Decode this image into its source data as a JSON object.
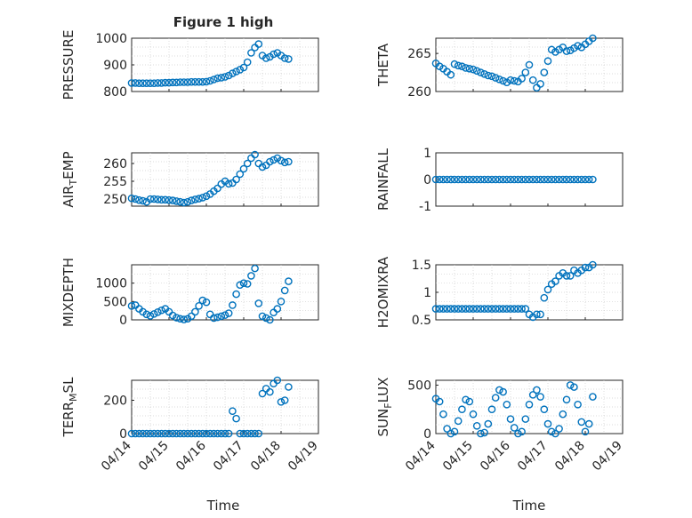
{
  "figure": {
    "title": "Figure 1 high",
    "marker_color": "#0072BD",
    "x_axis_label": "Time",
    "x_ticks": [
      "04/14",
      "04/15",
      "04/16",
      "04/17",
      "04/18",
      "04/19"
    ]
  },
  "chart_data": [
    {
      "type": "scatter",
      "ylabel": "PRESSURE",
      "ylim": [
        800,
        1000
      ],
      "yticks": [
        "800",
        "900",
        "1000"
      ],
      "grid": true,
      "xticks_shown": false,
      "x_day": [
        0.0,
        0.1,
        0.2,
        0.3,
        0.4,
        0.5,
        0.6,
        0.7,
        0.8,
        0.9,
        1.0,
        1.1,
        1.2,
        1.3,
        1.4,
        1.5,
        1.6,
        1.7,
        1.8,
        1.9,
        2.0,
        2.1,
        2.2,
        2.3,
        2.4,
        2.5,
        2.6,
        2.7,
        2.8,
        2.9,
        3.0,
        3.1,
        3.2,
        3.3,
        3.4,
        3.5,
        3.6,
        3.7,
        3.8,
        3.9,
        4.0,
        4.1,
        4.2
      ],
      "y": [
        832,
        832,
        831,
        831,
        831,
        831,
        831,
        832,
        832,
        833,
        833,
        834,
        834,
        835,
        835,
        835,
        836,
        836,
        836,
        836,
        837,
        840,
        845,
        850,
        852,
        855,
        860,
        868,
        875,
        882,
        890,
        910,
        945,
        965,
        978,
        935,
        925,
        930,
        940,
        945,
        935,
        925,
        922
      ]
    },
    {
      "type": "scatter",
      "ylabel": "THETA",
      "ylim": [
        260,
        267
      ],
      "yticks": [
        "260",
        "265"
      ],
      "grid": true,
      "xticks_shown": false,
      "x_day": [
        0.0,
        0.1,
        0.2,
        0.3,
        0.4,
        0.5,
        0.6,
        0.7,
        0.8,
        0.9,
        1.0,
        1.1,
        1.2,
        1.3,
        1.4,
        1.5,
        1.6,
        1.7,
        1.8,
        1.9,
        2.0,
        2.1,
        2.2,
        2.3,
        2.4,
        2.5,
        2.6,
        2.7,
        2.8,
        2.9,
        3.0,
        3.1,
        3.2,
        3.3,
        3.4,
        3.5,
        3.6,
        3.7,
        3.8,
        3.9,
        4.0,
        4.1,
        4.2
      ],
      "y": [
        263.7,
        263.3,
        263.0,
        262.6,
        262.2,
        263.6,
        263.4,
        263.3,
        263.1,
        263.0,
        262.9,
        262.7,
        262.5,
        262.3,
        262.1,
        262.0,
        261.8,
        261.6,
        261.4,
        261.2,
        261.5,
        261.4,
        261.3,
        261.7,
        262.5,
        263.5,
        261.5,
        260.5,
        261.0,
        262.5,
        264.0,
        265.5,
        265.2,
        265.5,
        265.8,
        265.3,
        265.4,
        265.7,
        266.0,
        265.8,
        266.2,
        266.6,
        267.0
      ]
    },
    {
      "type": "scatter",
      "ylabel": "AIR",
      "ylabel_sub": "T",
      "ylabel_rest": "EMP",
      "ylim": [
        248,
        263
      ],
      "yticks": [
        "250",
        "255",
        "260"
      ],
      "grid": true,
      "xticks_shown": false,
      "x_day": [
        0.0,
        0.1,
        0.2,
        0.3,
        0.4,
        0.5,
        0.6,
        0.7,
        0.8,
        0.9,
        1.0,
        1.1,
        1.2,
        1.3,
        1.4,
        1.5,
        1.6,
        1.7,
        1.8,
        1.9,
        2.0,
        2.1,
        2.2,
        2.3,
        2.4,
        2.5,
        2.6,
        2.7,
        2.8,
        2.9,
        3.0,
        3.1,
        3.2,
        3.3,
        3.4,
        3.5,
        3.6,
        3.7,
        3.8,
        3.9,
        4.0,
        4.1,
        4.2
      ],
      "y": [
        250.2,
        250.0,
        249.7,
        249.5,
        249.2,
        250.0,
        250.0,
        249.9,
        249.8,
        249.8,
        249.7,
        249.6,
        249.4,
        249.2,
        249.0,
        249.2,
        249.6,
        249.9,
        250.1,
        250.4,
        250.8,
        251.4,
        252.2,
        253.0,
        254.2,
        255.0,
        254.3,
        254.5,
        255.5,
        257.0,
        258.5,
        260.0,
        261.5,
        262.5,
        260.0,
        259.0,
        259.5,
        260.5,
        261.0,
        261.5,
        260.8,
        260.3,
        260.5
      ]
    },
    {
      "type": "scatter",
      "ylabel": "RAINFALL",
      "ylim": [
        -1,
        1
      ],
      "yticks": [
        "-1",
        "0",
        "1"
      ],
      "grid": false,
      "xticks_shown": false,
      "x_day": [
        0.0,
        0.1,
        0.2,
        0.3,
        0.4,
        0.5,
        0.6,
        0.7,
        0.8,
        0.9,
        1.0,
        1.1,
        1.2,
        1.3,
        1.4,
        1.5,
        1.6,
        1.7,
        1.8,
        1.9,
        2.0,
        2.1,
        2.2,
        2.3,
        2.4,
        2.5,
        2.6,
        2.7,
        2.8,
        2.9,
        3.0,
        3.1,
        3.2,
        3.3,
        3.4,
        3.5,
        3.6,
        3.7,
        3.8,
        3.9,
        4.0,
        4.1,
        4.2
      ],
      "y": [
        0,
        0,
        0,
        0,
        0,
        0,
        0,
        0,
        0,
        0,
        0,
        0,
        0,
        0,
        0,
        0,
        0,
        0,
        0,
        0,
        0,
        0,
        0,
        0,
        0,
        0,
        0,
        0,
        0,
        0,
        0,
        0,
        0,
        0,
        0,
        0,
        0,
        0,
        0,
        0,
        0,
        0,
        0
      ]
    },
    {
      "type": "scatter",
      "ylabel": "MIXDEPTH",
      "ylim": [
        0,
        1500
      ],
      "yticks": [
        "0",
        "500",
        "1000"
      ],
      "grid": true,
      "xticks_shown": false,
      "x_day": [
        0.0,
        0.1,
        0.2,
        0.3,
        0.4,
        0.5,
        0.6,
        0.7,
        0.8,
        0.9,
        1.0,
        1.1,
        1.2,
        1.3,
        1.4,
        1.5,
        1.6,
        1.7,
        1.8,
        1.9,
        2.0,
        2.1,
        2.2,
        2.3,
        2.4,
        2.5,
        2.6,
        2.7,
        2.8,
        2.9,
        3.0,
        3.1,
        3.2,
        3.3,
        3.4,
        3.5,
        3.6,
        3.7,
        3.8,
        3.9,
        4.0,
        4.1,
        4.2
      ],
      "y": [
        380,
        400,
        300,
        220,
        150,
        110,
        160,
        210,
        260,
        300,
        220,
        120,
        60,
        30,
        10,
        30,
        100,
        220,
        380,
        530,
        480,
        150,
        50,
        70,
        100,
        130,
        180,
        400,
        700,
        950,
        1000,
        980,
        1200,
        1400,
        450,
        100,
        50,
        0,
        200,
        300,
        500,
        800,
        1050
      ]
    },
    {
      "type": "scatter",
      "ylabel": "H2OMIXRA",
      "ylim": [
        0.5,
        1.5
      ],
      "yticks": [
        "0.5",
        "1",
        "1.5"
      ],
      "grid": true,
      "xticks_shown": false,
      "x_day": [
        0.0,
        0.1,
        0.2,
        0.3,
        0.4,
        0.5,
        0.6,
        0.7,
        0.8,
        0.9,
        1.0,
        1.1,
        1.2,
        1.3,
        1.4,
        1.5,
        1.6,
        1.7,
        1.8,
        1.9,
        2.0,
        2.1,
        2.2,
        2.3,
        2.4,
        2.5,
        2.6,
        2.7,
        2.8,
        2.9,
        3.0,
        3.1,
        3.2,
        3.3,
        3.4,
        3.5,
        3.6,
        3.7,
        3.8,
        3.9,
        4.0,
        4.1,
        4.2
      ],
      "y": [
        0.7,
        0.7,
        0.7,
        0.7,
        0.7,
        0.7,
        0.7,
        0.7,
        0.7,
        0.7,
        0.7,
        0.7,
        0.7,
        0.7,
        0.7,
        0.7,
        0.7,
        0.7,
        0.7,
        0.7,
        0.7,
        0.7,
        0.7,
        0.7,
        0.7,
        0.6,
        0.55,
        0.6,
        0.6,
        0.9,
        1.05,
        1.15,
        1.2,
        1.3,
        1.35,
        1.3,
        1.3,
        1.4,
        1.35,
        1.4,
        1.45,
        1.45,
        1.5
      ]
    },
    {
      "type": "scatter",
      "ylabel": "TERR",
      "ylabel_sub": "M",
      "ylabel_rest": "SL",
      "ylim": [
        0,
        320
      ],
      "yticks": [
        "0",
        "200"
      ],
      "grid": true,
      "xticks_shown": true,
      "x_day": [
        0.0,
        0.1,
        0.2,
        0.3,
        0.4,
        0.5,
        0.6,
        0.7,
        0.8,
        0.9,
        1.0,
        1.1,
        1.2,
        1.3,
        1.4,
        1.5,
        1.6,
        1.7,
        1.8,
        1.9,
        2.0,
        2.1,
        2.2,
        2.3,
        2.4,
        2.5,
        2.6,
        2.7,
        2.8,
        2.9,
        3.0,
        3.1,
        3.2,
        3.3,
        3.4,
        3.5,
        3.6,
        3.7,
        3.8,
        3.9,
        4.0,
        4.1,
        4.2
      ],
      "y": [
        0,
        0,
        0,
        0,
        0,
        0,
        0,
        0,
        0,
        0,
        0,
        0,
        0,
        0,
        0,
        0,
        0,
        0,
        0,
        0,
        0,
        0,
        0,
        0,
        0,
        0,
        0,
        135,
        90,
        0,
        0,
        0,
        0,
        0,
        0,
        240,
        270,
        250,
        300,
        320,
        190,
        200,
        280
      ]
    },
    {
      "type": "scatter",
      "ylabel": "SUN",
      "ylabel_sub": "F",
      "ylabel_rest": "LUX",
      "ylim": [
        0,
        550
      ],
      "yticks": [
        "0",
        "500"
      ],
      "grid": true,
      "xticks_shown": true,
      "x_day": [
        0.0,
        0.1,
        0.2,
        0.3,
        0.4,
        0.5,
        0.6,
        0.7,
        0.8,
        0.9,
        1.0,
        1.1,
        1.2,
        1.3,
        1.4,
        1.5,
        1.6,
        1.7,
        1.8,
        1.9,
        2.0,
        2.1,
        2.2,
        2.3,
        2.4,
        2.5,
        2.6,
        2.7,
        2.8,
        2.9,
        3.0,
        3.1,
        3.2,
        3.3,
        3.4,
        3.5,
        3.6,
        3.7,
        3.8,
        3.9,
        4.0,
        4.1,
        4.2
      ],
      "y": [
        360,
        330,
        200,
        50,
        0,
        20,
        130,
        250,
        350,
        330,
        200,
        80,
        0,
        10,
        100,
        250,
        370,
        450,
        430,
        300,
        150,
        60,
        0,
        20,
        150,
        300,
        400,
        450,
        380,
        250,
        100,
        20,
        0,
        50,
        200,
        350,
        500,
        480,
        300,
        120,
        20,
        100,
        380
      ]
    }
  ]
}
